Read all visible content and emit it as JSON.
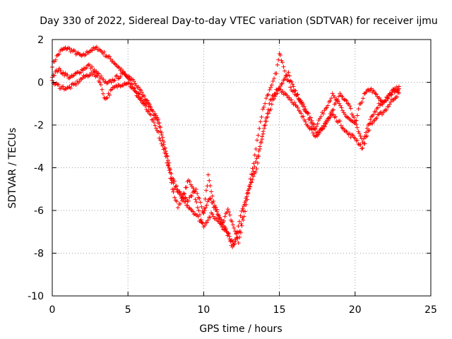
{
  "chart_data": {
    "type": "scatter",
    "title": "Day 330 of 2022, Sidereal Day-to-day VTEC variation (SDTVAR) for receiver ijmu",
    "xlabel": "GPS time / hours",
    "ylabel": "SDTVAR / TECUs",
    "xlim": [
      0,
      25
    ],
    "ylim": [
      -10,
      2
    ],
    "xticks": [
      0,
      5,
      10,
      15,
      20,
      25
    ],
    "yticks": [
      -10,
      -8,
      -6,
      -4,
      -2,
      0,
      2
    ],
    "grid": true,
    "marker": "+",
    "color": "#ff0000",
    "series": [
      {
        "name": "SDTVAR",
        "x": [
          0.0,
          0.3,
          0.6,
          1.0,
          1.5,
          2.0,
          2.5,
          3.0,
          3.5,
          4.0,
          4.5,
          5.0,
          5.5,
          6.0,
          6.5,
          7.0,
          7.3,
          7.6,
          7.8,
          8.0,
          8.3,
          8.6,
          9.0,
          9.3,
          9.6,
          9.9,
          10.1,
          10.3,
          10.5,
          10.8,
          11.1,
          11.4,
          11.7,
          11.9,
          12.1,
          12.4,
          12.7,
          13.0,
          13.3,
          13.6,
          13.9,
          14.2,
          14.5,
          14.8,
          15.0,
          15.2,
          15.5,
          15.8,
          16.1,
          16.4,
          16.7,
          17.0,
          17.3,
          17.6,
          17.9,
          18.2,
          18.5,
          18.8,
          19.1,
          19.4,
          19.7,
          20.0,
          20.3,
          20.6,
          21.0,
          21.4,
          21.8,
          22.2,
          22.6,
          22.9
        ],
        "y": [
          0.8,
          1.2,
          1.5,
          1.6,
          1.4,
          1.2,
          1.5,
          1.6,
          1.3,
          1.0,
          0.6,
          0.2,
          -0.4,
          -0.8,
          -1.2,
          -1.8,
          -2.5,
          -3.5,
          -4.5,
          -5.2,
          -5.8,
          -5.4,
          -4.6,
          -4.9,
          -5.9,
          -6.5,
          -5.5,
          -4.4,
          -5.2,
          -5.9,
          -6.4,
          -6.8,
          -7.2,
          -7.8,
          -7.5,
          -6.9,
          -5.8,
          -4.8,
          -3.8,
          -2.4,
          -1.3,
          -0.6,
          -0.2,
          0.5,
          1.3,
          1.0,
          0.2,
          -0.3,
          -0.6,
          -0.9,
          -1.3,
          -1.8,
          -2.2,
          -1.8,
          -1.4,
          -1.0,
          -0.6,
          -0.9,
          -1.2,
          -1.6,
          -1.8,
          -2.0,
          -1.1,
          -0.6,
          -0.3,
          -0.6,
          -1.0,
          -0.7,
          -0.4,
          -0.2
        ]
      },
      {
        "name": "SDTVAR",
        "x": [
          0.0,
          0.4,
          0.8,
          1.2,
          1.8,
          2.4,
          3.0,
          3.6,
          4.2,
          4.8,
          5.4,
          6.0,
          6.5,
          7.0,
          7.5,
          8.0,
          8.5,
          9.0,
          9.5,
          10.0,
          10.4,
          10.8,
          11.2,
          11.6,
          12.0,
          12.3,
          12.6,
          13.0,
          13.5,
          14.0,
          14.4,
          14.8,
          15.2,
          15.6,
          16.0,
          16.5,
          17.0,
          17.5,
          18.0,
          18.5,
          19.0,
          19.5,
          20.0,
          20.5,
          21.0,
          21.5,
          22.0,
          22.5,
          22.9
        ],
        "y": [
          0.3,
          0.6,
          0.4,
          0.2,
          0.5,
          0.8,
          0.4,
          -0.1,
          0.2,
          0.4,
          0.1,
          -0.6,
          -1.2,
          -1.9,
          -3.2,
          -4.6,
          -5.3,
          -5.5,
          -5.0,
          -6.2,
          -5.4,
          -6.0,
          -6.6,
          -6.0,
          -6.8,
          -7.5,
          -6.5,
          -5.0,
          -4.0,
          -2.0,
          -0.8,
          -0.4,
          0.0,
          0.4,
          -0.4,
          -1.0,
          -1.6,
          -2.4,
          -2.0,
          -1.3,
          -0.6,
          -0.9,
          -1.8,
          -2.8,
          -1.8,
          -1.1,
          -0.8,
          -0.4,
          -0.3
        ]
      },
      {
        "name": "SDTVAR",
        "x": [
          0.0,
          0.5,
          1.0,
          1.5,
          2.0,
          2.5,
          3.0,
          3.5,
          4.0,
          4.5,
          5.0,
          5.5,
          6.0,
          6.5,
          7.0,
          7.5,
          8.0,
          8.5,
          9.0,
          9.5,
          10.0,
          10.5,
          11.0,
          11.5,
          12.0,
          12.5,
          13.0,
          13.5,
          14.0,
          14.5,
          15.0,
          15.5,
          16.0,
          16.5,
          17.0,
          17.5,
          18.0,
          18.5,
          19.0,
          19.5,
          20.0,
          20.5,
          21.0,
          21.5,
          22.0,
          22.5,
          22.9
        ],
        "y": [
          0.0,
          -0.2,
          -0.3,
          -0.1,
          0.2,
          0.4,
          0.3,
          -0.8,
          -0.3,
          -0.1,
          0.0,
          -0.5,
          -1.0,
          -1.6,
          -2.4,
          -3.5,
          -4.8,
          -5.4,
          -5.8,
          -6.2,
          -6.7,
          -6.2,
          -6.5,
          -7.0,
          -7.6,
          -6.0,
          -5.0,
          -3.6,
          -2.2,
          -1.0,
          -0.3,
          -0.6,
          -1.0,
          -1.6,
          -2.1,
          -2.6,
          -2.0,
          -1.5,
          -1.9,
          -2.4,
          -2.6,
          -3.1,
          -2.0,
          -1.6,
          -1.3,
          -0.8,
          -0.5
        ]
      }
    ]
  }
}
